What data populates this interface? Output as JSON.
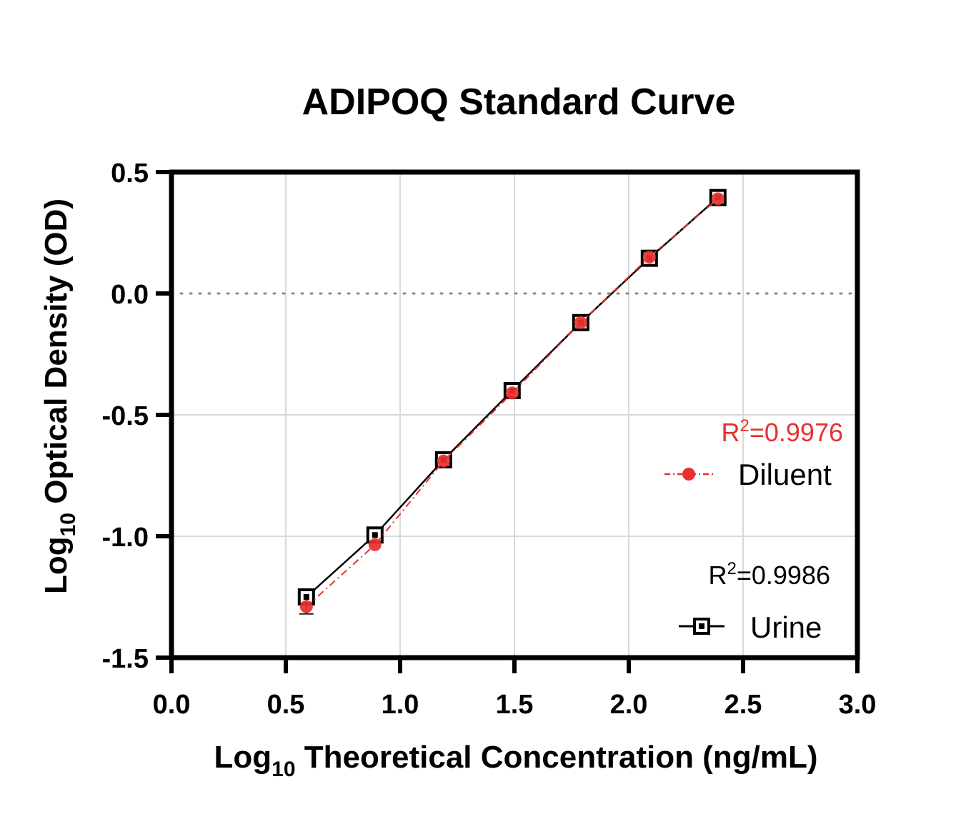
{
  "chart_data": {
    "type": "line",
    "title": "ADIPOQ Standard Curve",
    "xlabel": {
      "base": "Log",
      "sub": "10",
      "rest": " Theoretical Concentration (ng/mL)"
    },
    "ylabel": {
      "base": "Log",
      "sub": "10",
      "rest": " Optical Density (OD)"
    },
    "xlim": [
      0.0,
      3.0
    ],
    "ylim": [
      -1.5,
      0.5
    ],
    "xticks": [
      0.0,
      0.5,
      1.0,
      1.5,
      2.0,
      2.5,
      3.0
    ],
    "xtick_labels": [
      "0.0",
      "0.5",
      "1.0",
      "1.5",
      "2.0",
      "2.5",
      "3.0"
    ],
    "yticks": [
      -1.5,
      -1.0,
      -0.5,
      0.0,
      0.5
    ],
    "ytick_labels": [
      "-1.5",
      "-1.0",
      "-0.5",
      "0.0",
      "0.5"
    ],
    "grid": true,
    "reference_line_y": 0.0,
    "legend_position": "bottom-right",
    "series": [
      {
        "name": "Diluent",
        "marker": "circle",
        "line_style": "dash-dot",
        "color": "#e8302f",
        "r2_prefix": "R",
        "r2_sup": "2",
        "r2_value": "=0.9976",
        "x": [
          0.59,
          0.89,
          1.19,
          1.49,
          1.79,
          2.09,
          2.39
        ],
        "y": [
          -1.29,
          -1.035,
          -0.69,
          -0.41,
          -0.12,
          0.15,
          0.39
        ],
        "error": [
          0.03,
          0.0,
          0.0,
          0.0,
          0.0,
          0.0,
          0.0
        ]
      },
      {
        "name": "Urine",
        "marker": "square",
        "line_style": "solid",
        "color": "#000000",
        "r2_prefix": "R",
        "r2_sup": "2",
        "r2_value": "=0.9986",
        "x": [
          0.59,
          0.89,
          1.19,
          1.49,
          1.79,
          2.09,
          2.39
        ],
        "y": [
          -1.25,
          -0.995,
          -0.685,
          -0.4,
          -0.12,
          0.145,
          0.395
        ],
        "error": [
          0.0,
          0.0,
          0.0,
          0.0,
          0.0,
          0.0,
          0.0
        ]
      }
    ]
  }
}
